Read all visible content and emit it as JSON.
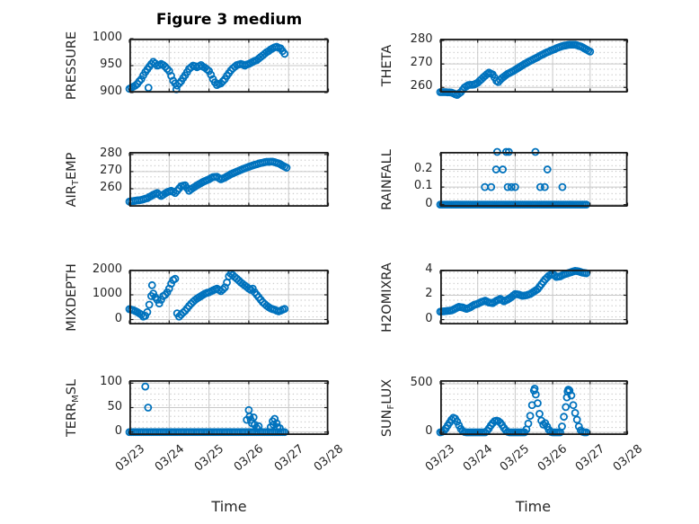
{
  "title": "Figure 3 medium",
  "xlabel": "Time",
  "x_tick_labels": [
    "03/23",
    "03/24",
    "03/25",
    "03/26",
    "03/27",
    "03/28"
  ],
  "colors": {
    "marker": "#0072BD",
    "axis": "#1a1a1a",
    "major_grid": "#c9c9c9",
    "minor_dot": "#b9b9b9",
    "tick_text": "#262626"
  },
  "chart_data": [
    {
      "id": "pressure",
      "type": "scatter",
      "row": 0,
      "col": "left",
      "ylabel": "PRESSURE",
      "ylabel_segments": [
        {
          "text": "PRESSURE",
          "subscript": false
        }
      ],
      "ytick_labels": [
        "900",
        "950",
        "1000"
      ],
      "ytick_values": [
        900,
        950,
        1000
      ],
      "ylim": [
        900,
        1000
      ],
      "x_unit": "days since 03/23",
      "xlim": [
        0,
        5
      ],
      "x0": 0,
      "dx": 0.05,
      "y": [
        907,
        909,
        911,
        913,
        916,
        921,
        925,
        932,
        938,
        943,
        948,
        953,
        957,
        954,
        950,
        951,
        953,
        951,
        948,
        944,
        940,
        931,
        922,
        917,
        913,
        917,
        921,
        927,
        932,
        938,
        944,
        947,
        950,
        949,
        947,
        949,
        951,
        948,
        946,
        943,
        940,
        933,
        925,
        919,
        914,
        916,
        917,
        921,
        925,
        931,
        936,
        941,
        945,
        948,
        951,
        952,
        953,
        952,
        950,
        952,
        953,
        955,
        957,
        959,
        960,
        963,
        966,
        969,
        972,
        975,
        977,
        980,
        982,
        984,
        985,
        983,
        982,
        977,
        972
      ],
      "extra_points": [
        [
          0.48,
          909
        ],
        [
          1.18,
          906
        ]
      ]
    },
    {
      "id": "theta",
      "type": "scatter",
      "row": 0,
      "col": "right",
      "ylabel": "THETA",
      "ylabel_segments": [
        {
          "text": "THETA",
          "subscript": false
        }
      ],
      "ytick_labels": [
        "260",
        "270",
        "280"
      ],
      "ytick_values": [
        260,
        270,
        280
      ],
      "ylim": [
        257.8,
        280.8
      ],
      "x_unit": "days since 03/23",
      "xlim": [
        0,
        5
      ],
      "x0": 0,
      "dx": 0.05,
      "y": [
        258,
        258,
        258,
        258,
        257.9,
        257.9,
        257.8,
        257.5,
        257.1,
        256.8,
        257.4,
        258,
        259,
        260,
        260.5,
        261,
        261.1,
        261.1,
        261.2,
        261.6,
        262,
        262.8,
        263.5,
        264.3,
        265,
        265.7,
        266.3,
        265.9,
        265.5,
        264.2,
        262.8,
        262.3,
        263.2,
        264,
        264.6,
        265.2,
        265.8,
        266.2,
        266.6,
        267,
        267.5,
        268,
        268.5,
        269,
        269.5,
        270,
        270.4,
        270.9,
        271.3,
        271.7,
        272.1,
        272.5,
        272.9,
        273.4,
        273.8,
        274.2,
        274.6,
        275,
        275.3,
        275.7,
        276,
        276.3,
        276.7,
        277,
        277.3,
        277.6,
        277.8,
        277.9,
        278.1,
        278.2,
        278.2,
        278.2,
        278.2,
        278,
        277.7,
        277.5,
        277.1,
        276.6,
        276.2,
        275.7,
        275.3
      ],
      "extra_points": []
    },
    {
      "id": "airtemp",
      "type": "scatter",
      "row": 1,
      "col": "left",
      "ylabel": "AIR_TEMP",
      "ylabel_segments": [
        {
          "text": "AIR",
          "subscript": false
        },
        {
          "text": "T",
          "subscript": true
        },
        {
          "text": "EMP",
          "subscript": false
        }
      ],
      "ytick_labels": [
        "260",
        "270",
        "280"
      ],
      "ytick_values": [
        260,
        270,
        280
      ],
      "ylim": [
        249.5,
        281.5
      ],
      "x_unit": "days since 03/23",
      "xlim": [
        0,
        5
      ],
      "x0": 0,
      "dx": 0.05,
      "y": [
        252.5,
        252.7,
        252.8,
        253,
        253.2,
        253.3,
        253.5,
        253.8,
        254.2,
        254.5,
        255.2,
        255.8,
        256.5,
        257,
        257.5,
        256.6,
        255.8,
        256.5,
        257.3,
        258,
        258.4,
        258.8,
        258.2,
        257.5,
        258.8,
        260.2,
        261.5,
        261.8,
        262,
        260.4,
        258.8,
        259.7,
        260.5,
        261.2,
        262,
        262.7,
        263.3,
        264,
        264.5,
        265,
        265.5,
        266.2,
        266.8,
        266.9,
        267,
        266.2,
        265.5,
        266,
        266.5,
        267.2,
        267.8,
        268.5,
        269,
        269.5,
        270,
        270.5,
        271,
        271.5,
        271.9,
        272.4,
        272.8,
        273.2,
        273.6,
        274,
        274.3,
        274.7,
        275,
        275.2,
        275.5,
        275.7,
        275.7,
        275.8,
        275.8,
        275.5,
        275.1,
        274.8,
        274.2,
        273.5,
        272.9,
        272.3
      ],
      "extra_points": []
    },
    {
      "id": "rainfall",
      "type": "scatter",
      "row": 1,
      "col": "right",
      "ylabel": "RAINFALL",
      "ylabel_segments": [
        {
          "text": "RAINFALL",
          "subscript": false
        }
      ],
      "ytick_labels": [
        "0",
        "0.1",
        "0.2"
      ],
      "ytick_values": [
        0,
        0.1,
        0.2
      ],
      "ylim": [
        -0.012,
        0.3
      ],
      "x_unit": "days since 03/23",
      "xlim": [
        0,
        5
      ],
      "x0": 0,
      "dx": 0.05,
      "y": [
        0,
        0,
        0,
        0,
        0,
        0,
        0,
        0,
        0,
        0,
        0,
        0,
        0,
        0,
        0,
        0,
        0,
        0,
        0,
        0,
        0,
        0,
        0,
        0,
        0,
        0,
        0,
        0,
        0,
        0,
        0,
        0,
        0,
        0,
        0,
        0,
        0,
        0,
        0,
        0,
        0,
        0,
        0,
        0,
        0,
        0,
        0,
        0,
        0,
        0,
        0,
        0,
        0,
        0,
        0,
        0,
        0,
        0,
        0,
        0,
        0,
        0,
        0,
        0,
        0,
        0,
        0,
        0,
        0,
        0,
        0,
        0,
        0,
        0,
        0,
        0,
        0,
        0,
        0
      ],
      "extra_points": [
        [
          1.19,
          0.1
        ],
        [
          1.36,
          0.1
        ],
        [
          1.49,
          0.2
        ],
        [
          1.52,
          0.3
        ],
        [
          1.67,
          0.2
        ],
        [
          1.76,
          0.3
        ],
        [
          1.8,
          0.1
        ],
        [
          1.83,
          0.3
        ],
        [
          1.9,
          0.1
        ],
        [
          2.0,
          0.1
        ],
        [
          2.54,
          0.3
        ],
        [
          2.67,
          0.1
        ],
        [
          2.79,
          0.1
        ],
        [
          2.86,
          0.2
        ],
        [
          3.26,
          0.1
        ]
      ]
    },
    {
      "id": "mixdepth",
      "type": "scatter",
      "row": 2,
      "col": "left",
      "ylabel": "MIXDEPTH",
      "ylabel_segments": [
        {
          "text": "MIXDEPTH",
          "subscript": false
        }
      ],
      "ytick_labels": [
        "0",
        "1000",
        "2000"
      ],
      "ytick_values": [
        0,
        1000,
        2000
      ],
      "ylim": [
        -200,
        2020
      ],
      "x_unit": "days since 03/23",
      "xlim": [
        0,
        5
      ],
      "x0": 0,
      "dx": 0.05,
      "y": [
        420,
        400,
        380,
        340,
        300,
        250,
        200,
        120,
        150,
        300,
        600,
        950,
        1050,
        900,
        800,
        650,
        800,
        950,
        1000,
        1100,
        1250,
        1450,
        1600,
        1650,
        250,
        120,
        200,
        280,
        350,
        450,
        550,
        640,
        720,
        790,
        850,
        900,
        950,
        1000,
        1050,
        1080,
        1100,
        1140,
        1180,
        1220,
        1250,
        1200,
        1150,
        1220,
        1300,
        1500,
        1750,
        1850,
        1800,
        1720,
        1650,
        1580,
        1500,
        1440,
        1380,
        1320,
        1250,
        1200,
        1250,
        1100,
        1000,
        900,
        800,
        700,
        630,
        560,
        500,
        450,
        420,
        400,
        360,
        330,
        360,
        400
      ],
      "extra_points": [
        [
          0.57,
          1390
        ],
        [
          3.9,
          430
        ]
      ]
    },
    {
      "id": "h2omixra",
      "type": "scatter",
      "row": 2,
      "col": "right",
      "ylabel": "H2OMIXRA",
      "ylabel_segments": [
        {
          "text": "H2OMIXRA",
          "subscript": false
        }
      ],
      "ytick_labels": [
        "0",
        "2",
        "4"
      ],
      "ytick_values": [
        0,
        2,
        4
      ],
      "ylim": [
        -0.4,
        4.1
      ],
      "x_unit": "days since 03/23",
      "xlim": [
        0,
        5
      ],
      "x0": 0,
      "dx": 0.05,
      "y": [
        0.65,
        0.67,
        0.68,
        0.7,
        0.72,
        0.73,
        0.75,
        0.82,
        0.9,
        0.98,
        1.05,
        1.02,
        1,
        0.94,
        0.88,
        0.94,
        1,
        1.1,
        1.2,
        1.25,
        1.3,
        1.38,
        1.45,
        1.5,
        1.55,
        1.48,
        1.4,
        1.38,
        1.35,
        1.45,
        1.55,
        1.62,
        1.7,
        1.6,
        1.5,
        1.58,
        1.65,
        1.75,
        1.85,
        1.98,
        2.1,
        2.08,
        2.05,
        2,
        1.95,
        1.98,
        2,
        2.05,
        2.1,
        2.2,
        2.3,
        2.4,
        2.5,
        2.7,
        2.9,
        3.1,
        3.3,
        3.45,
        3.6,
        3.68,
        3.75,
        3.63,
        3.5,
        3.53,
        3.55,
        3.63,
        3.7,
        3.75,
        3.8,
        3.85,
        3.9,
        3.95,
        4,
        3.98,
        3.95,
        3.9,
        3.85,
        3.83,
        3.8
      ],
      "extra_points": []
    },
    {
      "id": "terrmsl",
      "type": "scatter",
      "row": 3,
      "col": "left",
      "ylabel": "TERR_MSL",
      "ylabel_segments": [
        {
          "text": "TERR",
          "subscript": false
        },
        {
          "text": "M",
          "subscript": true
        },
        {
          "text": "SL",
          "subscript": false
        }
      ],
      "ytick_labels": [
        "0",
        "50",
        "100"
      ],
      "ytick_values": [
        0,
        50,
        100
      ],
      "ylim": [
        -6,
        106
      ],
      "x_unit": "days since 03/23",
      "xlim": [
        0,
        5
      ],
      "x0": 0,
      "dx": 0.05,
      "y": [
        0,
        0,
        0,
        0,
        0,
        0,
        0,
        0,
        0,
        0,
        0,
        0,
        0,
        0,
        0,
        0,
        0,
        0,
        0,
        0,
        0,
        0,
        0,
        0,
        0,
        0,
        0,
        0,
        0,
        0,
        0,
        0,
        0,
        0,
        0,
        0,
        0,
        0,
        0,
        0,
        0,
        0,
        0,
        0,
        0,
        0,
        0,
        0,
        0,
        0,
        0,
        0,
        0,
        0,
        0,
        0,
        0,
        0,
        0,
        0,
        0,
        0,
        0,
        0,
        0,
        0,
        0,
        0,
        0,
        0,
        0,
        0,
        0,
        0,
        0,
        0,
        0,
        0,
        0
      ],
      "extra_points": [
        [
          0.4,
          93
        ],
        [
          0.47,
          50
        ],
        [
          2.95,
          25
        ],
        [
          3.0,
          45
        ],
        [
          3.02,
          32
        ],
        [
          3.05,
          25
        ],
        [
          3.08,
          18
        ],
        [
          3.12,
          30
        ],
        [
          3.15,
          15
        ],
        [
          3.2,
          8
        ],
        [
          3.25,
          12
        ],
        [
          3.55,
          10
        ],
        [
          3.6,
          22
        ],
        [
          3.62,
          15
        ],
        [
          3.65,
          27
        ],
        [
          3.7,
          18
        ],
        [
          3.72,
          10
        ],
        [
          3.78,
          8
        ]
      ]
    },
    {
      "id": "sunflux",
      "type": "scatter",
      "row": 3,
      "col": "right",
      "ylabel": "SUN_FLUX",
      "ylabel_segments": [
        {
          "text": "SUN",
          "subscript": false
        },
        {
          "text": "F",
          "subscript": true
        },
        {
          "text": "LUX",
          "subscript": false
        }
      ],
      "ytick_labels": [
        "0",
        "500"
      ],
      "ytick_values": [
        0,
        500
      ],
      "ylim": [
        -28,
        537
      ],
      "x_unit": "days since 03/23",
      "xlim": [
        0,
        5
      ],
      "x0": 0,
      "dx": 0.05,
      "y": [
        0,
        5,
        15,
        40,
        70,
        100,
        130,
        150,
        140,
        110,
        70,
        35,
        12,
        3,
        0,
        0,
        0,
        0,
        0,
        0,
        0,
        0,
        0,
        0,
        0,
        15,
        40,
        70,
        95,
        115,
        120,
        115,
        100,
        75,
        45,
        20,
        5,
        0,
        0,
        0,
        0,
        0,
        0,
        0,
        0,
        0,
        30,
        90,
        170,
        280,
        430,
        390,
        300,
        190,
        120,
        80,
        95,
        60,
        25,
        5,
        0,
        0,
        0,
        0,
        0,
        60,
        160,
        260,
        420,
        430,
        380,
        280,
        200,
        130,
        60,
        20,
        5,
        0,
        0
      ],
      "extra_points": [
        [
          2.52,
          450
        ],
        [
          3.38,
          360
        ],
        [
          3.42,
          440
        ]
      ]
    }
  ]
}
